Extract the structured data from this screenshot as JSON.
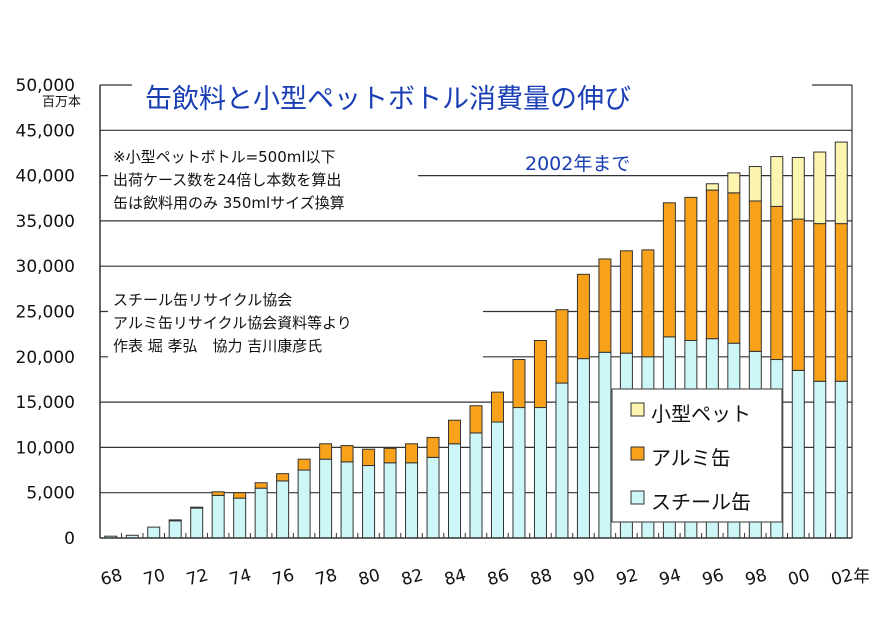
{
  "chart_data": {
    "type": "bar",
    "stacked": true,
    "title": "缶飲料と小型ペットボトル消費量の伸び",
    "subtitle": "2002年まで",
    "ylabel": "百万本",
    "xlabel_suffix": "年",
    "ylim": [
      0,
      50000
    ],
    "yticks": [
      "0",
      "5,000",
      "10,000",
      "15,000",
      "20,000",
      "25,000",
      "30,000",
      "35,000",
      "40,000",
      "45,000",
      "50,000"
    ],
    "grid": true,
    "legend_placement": "bottom-right",
    "notes": [
      "※小型ペットボトル=500ml以下",
      "出荷ケース数を24倍し本数を算出",
      "缶は飲料用のみ 350mlサイズ換算"
    ],
    "source": [
      "スチール缶リサイクル協会",
      "アルミ缶リサイクル協会資料等より",
      "作表 堀 孝弘　協力 吉川康彦氏"
    ],
    "categories": [
      "68",
      "69",
      "70",
      "71",
      "72",
      "73",
      "74",
      "75",
      "76",
      "77",
      "78",
      "79",
      "80",
      "81",
      "82",
      "83",
      "84",
      "85",
      "86",
      "87",
      "88",
      "89",
      "90",
      "91",
      "92",
      "93",
      "94",
      "95",
      "96",
      "97",
      "98",
      "99",
      "00",
      "01",
      "02"
    ],
    "xtick_labels": [
      "68",
      "70",
      "72",
      "74",
      "76",
      "78",
      "80",
      "82",
      "84",
      "86",
      "88",
      "90",
      "92",
      "94",
      "96",
      "98",
      "00",
      "02"
    ],
    "series": [
      {
        "name": "スチール缶",
        "color": "#ccf6f8",
        "values": [
          200,
          300,
          1200,
          1900,
          3300,
          4700,
          4400,
          5500,
          6300,
          7500,
          8700,
          8400,
          8000,
          8300,
          8300,
          8900,
          10400,
          11600,
          12800,
          14400,
          14400,
          17100,
          19800,
          20500,
          20400,
          20000,
          22200,
          21800,
          22000,
          21500,
          20600,
          19700,
          18500,
          17300,
          17300
        ]
      },
      {
        "name": "アルミ缶",
        "color": "#f7a21a",
        "values": [
          0,
          0,
          0,
          100,
          100,
          400,
          600,
          600,
          800,
          1200,
          1700,
          1800,
          1800,
          1600,
          2100,
          2200,
          2600,
          3000,
          3300,
          5300,
          7400,
          8100,
          9300,
          10300,
          11300,
          11800,
          14800,
          15800,
          16400,
          16600,
          16600,
          16900,
          16700,
          17400,
          17400
        ]
      },
      {
        "name": "小型ペット",
        "color": "#fcf5b0",
        "values": [
          0,
          0,
          0,
          0,
          0,
          0,
          0,
          0,
          0,
          0,
          0,
          0,
          0,
          0,
          0,
          0,
          0,
          0,
          0,
          0,
          0,
          0,
          0,
          0,
          0,
          0,
          0,
          0,
          700,
          2200,
          3800,
          5500,
          6800,
          7900,
          9000
        ]
      }
    ]
  }
}
